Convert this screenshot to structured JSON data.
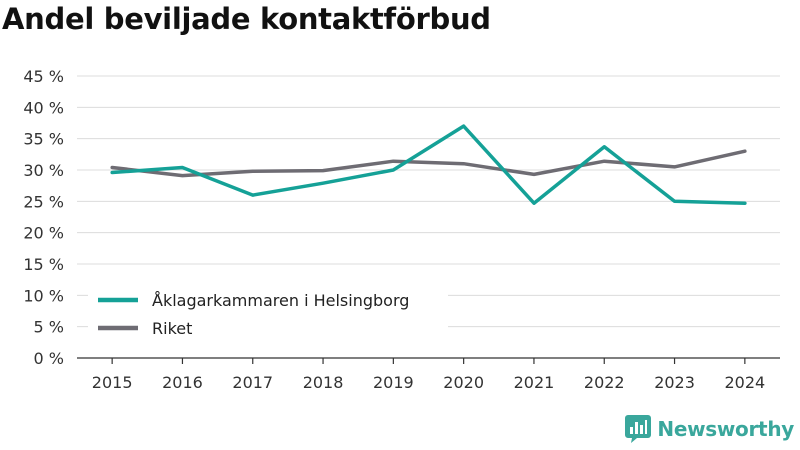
{
  "colors": {
    "series_1": "#15a197",
    "series_2": "#6e6c73",
    "grid": "#dcdcdc",
    "axis": "#333333",
    "brand": "#3aa79c"
  },
  "branding": {
    "name": "Newsworthy",
    "icon": "newsworthy-bar-chart-icon"
  },
  "chart_data": {
    "type": "line",
    "title": "Andel beviljade kontaktförbud",
    "xlabel": "",
    "ylabel": "",
    "x": [
      "2015",
      "2016",
      "2017",
      "2018",
      "2019",
      "2020",
      "2021",
      "2022",
      "2023",
      "2024"
    ],
    "ylim": [
      0,
      45
    ],
    "yticks": [
      0,
      5,
      10,
      15,
      20,
      25,
      30,
      35,
      40,
      45
    ],
    "ytick_labels": [
      "0 %",
      "5 %",
      "10 %",
      "15 %",
      "20 %",
      "25 %",
      "30 %",
      "35 %",
      "40 %",
      "45 %"
    ],
    "grid": true,
    "legend_position": "bottom-left",
    "series": [
      {
        "name": "Åklagarkammaren i Helsingborg",
        "color": "#15a197",
        "values": [
          29.6,
          30.4,
          26.0,
          27.9,
          30.0,
          37.0,
          24.7,
          33.7,
          25.0,
          24.7
        ]
      },
      {
        "name": "Riket",
        "color": "#6e6c73",
        "values": [
          30.4,
          29.1,
          29.8,
          29.9,
          31.4,
          31.0,
          29.3,
          31.4,
          30.5,
          33.0
        ]
      }
    ]
  }
}
